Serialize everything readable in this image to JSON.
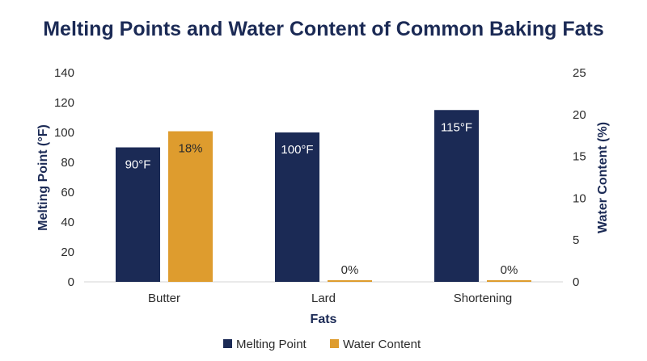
{
  "chart_data": {
    "type": "bar",
    "title": "Melting Points and Water Content of Common Baking Fats",
    "xlabel": "Fats",
    "ylabel": "Melting Point (°F)",
    "y2label": "Water Content (%)",
    "categories": [
      "Butter",
      "Lard",
      "Shortening"
    ],
    "ylim": [
      0,
      140
    ],
    "y2lim": [
      0,
      25
    ],
    "yticks": [
      "0",
      "20",
      "40",
      "60",
      "80",
      "100",
      "120",
      "140"
    ],
    "y2ticks": [
      "0",
      "5",
      "10",
      "15",
      "20",
      "25"
    ],
    "series": [
      {
        "name": "Melting Point",
        "axis": "left",
        "color": "#1b2a55",
        "values": [
          90,
          100,
          115
        ],
        "labels": [
          "90°F",
          "100°F",
          "115°F"
        ]
      },
      {
        "name": "Water Content",
        "axis": "right",
        "color": "#de9c2e",
        "values": [
          18,
          0,
          0
        ],
        "labels": [
          "18%",
          "0%",
          "0%"
        ]
      }
    ],
    "legend": "bottom-center",
    "grid": false
  }
}
